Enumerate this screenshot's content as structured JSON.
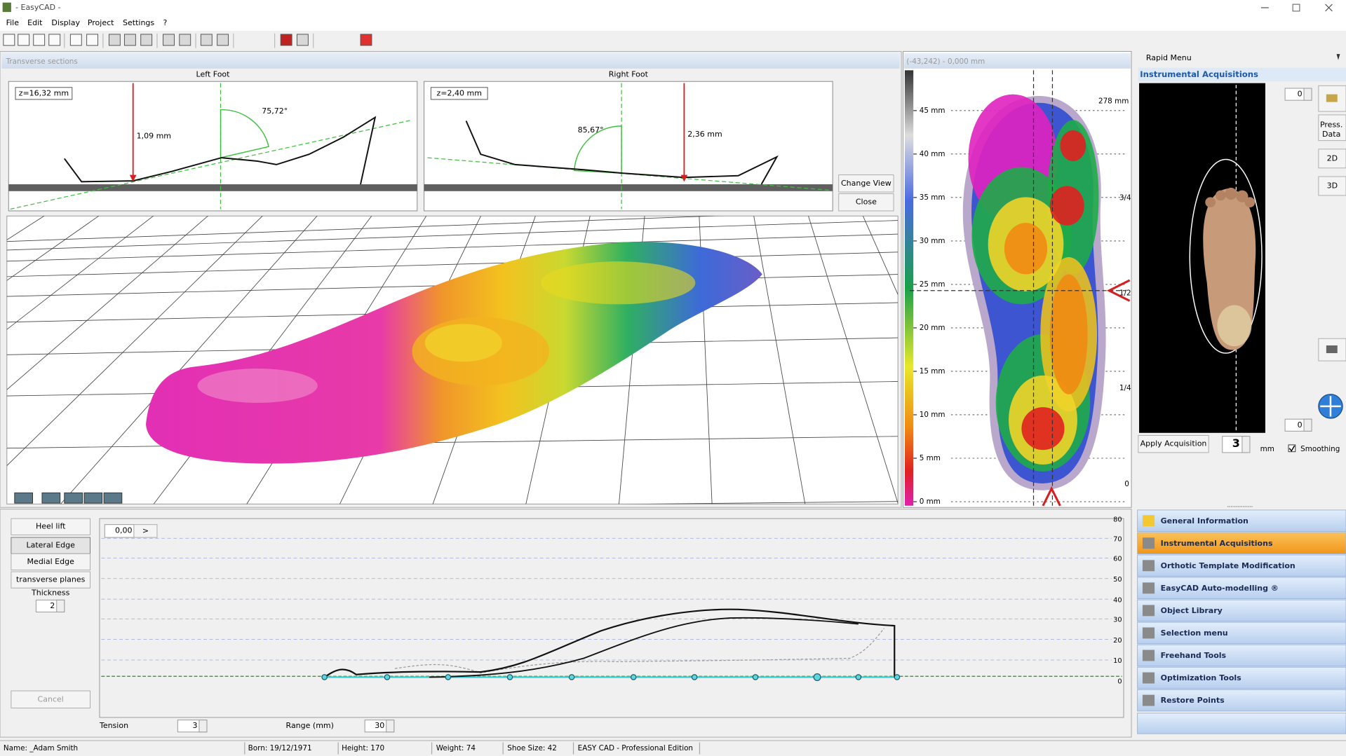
{
  "window": {
    "title": "- EasyCAD -"
  },
  "menu": [
    "File",
    "Edit",
    "Display",
    "Project",
    "Settings",
    "?"
  ],
  "sections": {
    "header": "Transverse sections",
    "left": {
      "title": "Left Foot",
      "z": "z=16,32 mm",
      "height": "1,09 mm",
      "angle": "75,72°"
    },
    "right": {
      "title": "Right Foot",
      "z": "z=2,40 mm",
      "angle": "85,67°",
      "height": "2,36 mm"
    },
    "buttons": [
      "Change View",
      "Close"
    ]
  },
  "pressure": {
    "coords": "(-43,242) - 0,000 mm",
    "scale": [
      "45 mm",
      "40 mm",
      "35 mm",
      "30 mm",
      "25 mm",
      "20 mm",
      "15 mm",
      "10 mm",
      "5 mm",
      "0 mm"
    ],
    "length": "278 mm",
    "marks": [
      "3/4",
      "1/2",
      "1/4",
      "0"
    ]
  },
  "rapid_menu": {
    "title": "Rapid Menu",
    "section": "Instrumental Acquisitions",
    "side_buttons": [
      "Press.",
      "Data",
      "2D",
      "3D"
    ],
    "spin_top": "0",
    "spin_bottom": "0",
    "apply": "Apply Acquisition",
    "value": "3",
    "unit": "mm",
    "smoothing": "Smoothing",
    "items": [
      "General Information",
      "Instrumental Acquisitions",
      "Orthotic Template Modification",
      "EasyCAD Auto-modelling ®",
      "Object Library",
      "Selection menu",
      "Freehand Tools",
      "Optimization Tools",
      "Restore Points"
    ]
  },
  "profile": {
    "buttons": [
      "Heel lift",
      "Lateral Edge",
      "Medial Edge",
      "transverse planes"
    ],
    "thickness_label": "Thickness",
    "thickness": "2",
    "cancel": "Cancel",
    "value": "0,00",
    "arrow": ">",
    "yticks": [
      "80",
      "70",
      "60",
      "50",
      "40",
      "30",
      "20",
      "10",
      "0"
    ],
    "tension_label": "Tension",
    "tension": "3",
    "range_label": "Range (mm)",
    "range": "30"
  },
  "status": [
    "Name: _Adam Smith",
    "Born: 19/12/1971",
    "Height: 170",
    "Weight: 74",
    "Shoe Size: 42",
    "EASY CAD - Professional Edition"
  ]
}
